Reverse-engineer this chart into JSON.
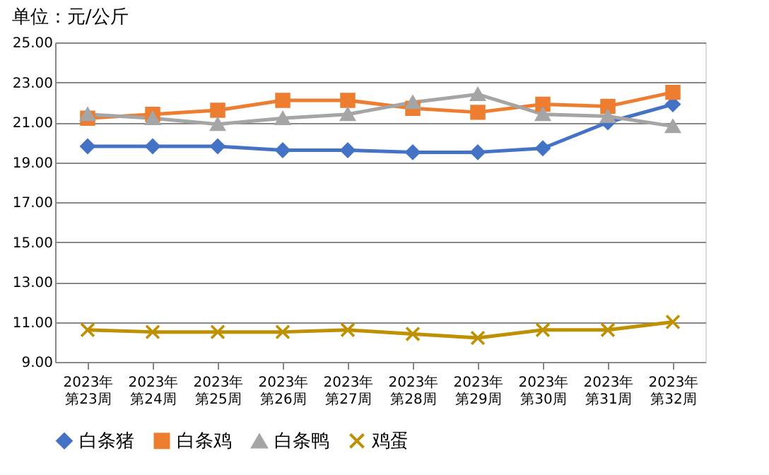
{
  "chart_data": {
    "type": "line",
    "title": "单位：元/公斤",
    "categories": [
      "2023年第23周",
      "2023年第24周",
      "2023年第25周",
      "2023年第26周",
      "2023年第27周",
      "2023年第28周",
      "2023年第29周",
      "2023年第30周",
      "2023年第31周",
      "2023年第32周"
    ],
    "series": [
      {
        "name": "白条猪",
        "color": "#4472c4",
        "marker": "diamond",
        "values": [
          19.8,
          19.8,
          19.8,
          19.6,
          19.6,
          19.5,
          19.5,
          19.7,
          21.0,
          21.9
        ]
      },
      {
        "name": "白条鸡",
        "color": "#ed7d31",
        "marker": "square",
        "values": [
          21.2,
          21.4,
          21.6,
          22.1,
          22.1,
          21.7,
          21.5,
          21.9,
          21.8,
          22.5
        ]
      },
      {
        "name": "白条鸭",
        "color": "#a5a5a5",
        "marker": "triangle",
        "values": [
          21.4,
          21.2,
          20.9,
          21.2,
          21.4,
          22.0,
          22.4,
          21.4,
          21.3,
          20.8
        ]
      },
      {
        "name": "鸡蛋",
        "color": "#bf9000",
        "marker": "cross",
        "values": [
          10.6,
          10.5,
          10.5,
          10.5,
          10.6,
          10.4,
          10.2,
          10.6,
          10.6,
          11.0
        ]
      }
    ],
    "ylim": [
      9,
      25
    ],
    "yticks": [
      {
        "value": 9,
        "label": "9.00"
      },
      {
        "value": 11,
        "label": "11.00"
      },
      {
        "value": 13,
        "label": "13.00"
      },
      {
        "value": 15,
        "label": "15.00"
      },
      {
        "value": 17,
        "label": "17.00"
      },
      {
        "value": 19,
        "label": "19.00"
      },
      {
        "value": 21,
        "label": "21.00"
      },
      {
        "value": 23,
        "label": "23.00"
      },
      {
        "value": 25,
        "label": "25.00"
      }
    ],
    "grid": "y",
    "legend": "bottom",
    "line_style": "solid"
  }
}
